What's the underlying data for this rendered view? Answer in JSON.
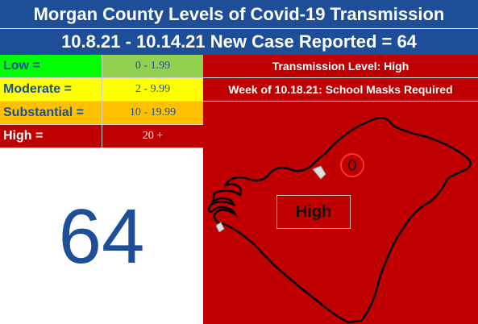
{
  "header": {
    "title": "Morgan County Levels of Covid-19 Transmission",
    "subtitle": "10.8.21 - 10.14.21 New Case Reported = 64"
  },
  "legend": [
    {
      "name": "Low =",
      "range": "0 - 1.99",
      "name_bg": "#00ff00",
      "name_color": "#1f4e99",
      "range_bg": "#92d050",
      "range_color": "#1f4e99"
    },
    {
      "name": "Moderate =",
      "range": "2 - 9.99",
      "name_bg": "#ffff00",
      "name_color": "#1f4e99",
      "range_bg": "#ffff00",
      "range_color": "#1f4e99"
    },
    {
      "name": "Substantial =",
      "range": "10 - 19.99",
      "name_bg": "#ffc000",
      "name_color": "#1f4e99",
      "range_bg": "#ffc000",
      "range_color": "#1f4e99"
    },
    {
      "name": "High =",
      "range": "20 +",
      "name_bg": "#c00000",
      "name_color": "#ffffff",
      "range_bg": "#c00000",
      "range_color": "#ffffff"
    }
  ],
  "case_count": "64",
  "status": {
    "level": "Transmission Level: High",
    "masks": "Week of 10.18.21: School Masks Required"
  },
  "map": {
    "label": "High",
    "fill": "#c00000",
    "icon": "county-outline-map"
  }
}
